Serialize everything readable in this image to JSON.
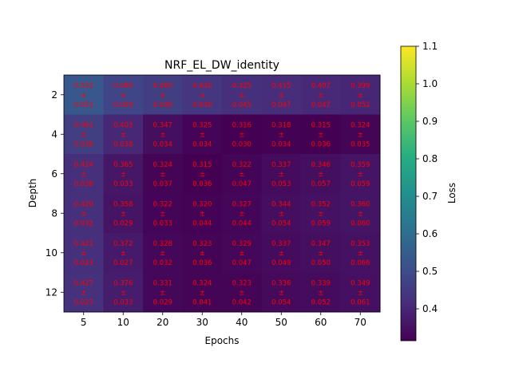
{
  "chart_data": {
    "type": "heatmap",
    "title": "NRF_EL_DW_identity",
    "xlabel": "Epochs",
    "ylabel": "Depth",
    "colorbar_label": "Loss",
    "colormap": "viridis",
    "x_categories": [
      "5",
      "10",
      "20",
      "30",
      "40",
      "50",
      "60",
      "70"
    ],
    "y_categories": [
      "2",
      "4",
      "6",
      "8",
      "10",
      "12"
    ],
    "values": [
      [
        "0.531",
        "0.480",
        "0.460",
        "0.440",
        "0.425",
        "0.415",
        "0.407",
        "0.399"
      ],
      [
        "0.461",
        "0.403",
        "0.347",
        "0.325",
        "0.316",
        "0.318",
        "0.315",
        "0.324"
      ],
      [
        "0.424",
        "0.365",
        "0.324",
        "0.315",
        "0.322",
        "0.337",
        "0.346",
        "0.359"
      ],
      [
        "0.420",
        "0.358",
        "0.322",
        "0.320",
        "0.327",
        "0.344",
        "0.352",
        "0.360"
      ],
      [
        "0.421",
        "0.372",
        "0.328",
        "0.323",
        "0.329",
        "0.337",
        "0.347",
        "0.353"
      ],
      [
        "0.427",
        "0.376",
        "0.331",
        "0.324",
        "0.323",
        "0.336",
        "0.339",
        "0.349"
      ]
    ],
    "errors": [
      [
        "0.051",
        "0.049",
        "0.046",
        "0.049",
        "0.045",
        "0.047",
        "0.047",
        "0.052"
      ],
      [
        "0.036",
        "0.038",
        "0.034",
        "0.034",
        "0.030",
        "0.034",
        "0.036",
        "0.035"
      ],
      [
        "0.038",
        "0.033",
        "0.037",
        "0.036",
        "0.047",
        "0.053",
        "0.057",
        "0.059"
      ],
      [
        "0.032",
        "0.029",
        "0.033",
        "0.044",
        "0.044",
        "0.054",
        "0.059",
        "0.060"
      ],
      [
        "0.023",
        "0.027",
        "0.032",
        "0.036",
        "0.047",
        "0.049",
        "0.050",
        "0.066"
      ],
      [
        "0.023",
        "0.033",
        "0.029",
        "0.041",
        "0.042",
        "0.054",
        "0.052",
        "0.061"
      ]
    ],
    "pm_symbol": "±",
    "y_ticks": [
      "2",
      "4",
      "6",
      "8",
      "10",
      "12"
    ],
    "colorbar_range": [
      0.315,
      1.1
    ],
    "colorbar_ticks": [
      "0.4",
      "0.5",
      "0.6",
      "0.7",
      "0.8",
      "0.9",
      "1.0",
      "1.1"
    ],
    "annotation_color": "#ff0000",
    "grid": false
  }
}
